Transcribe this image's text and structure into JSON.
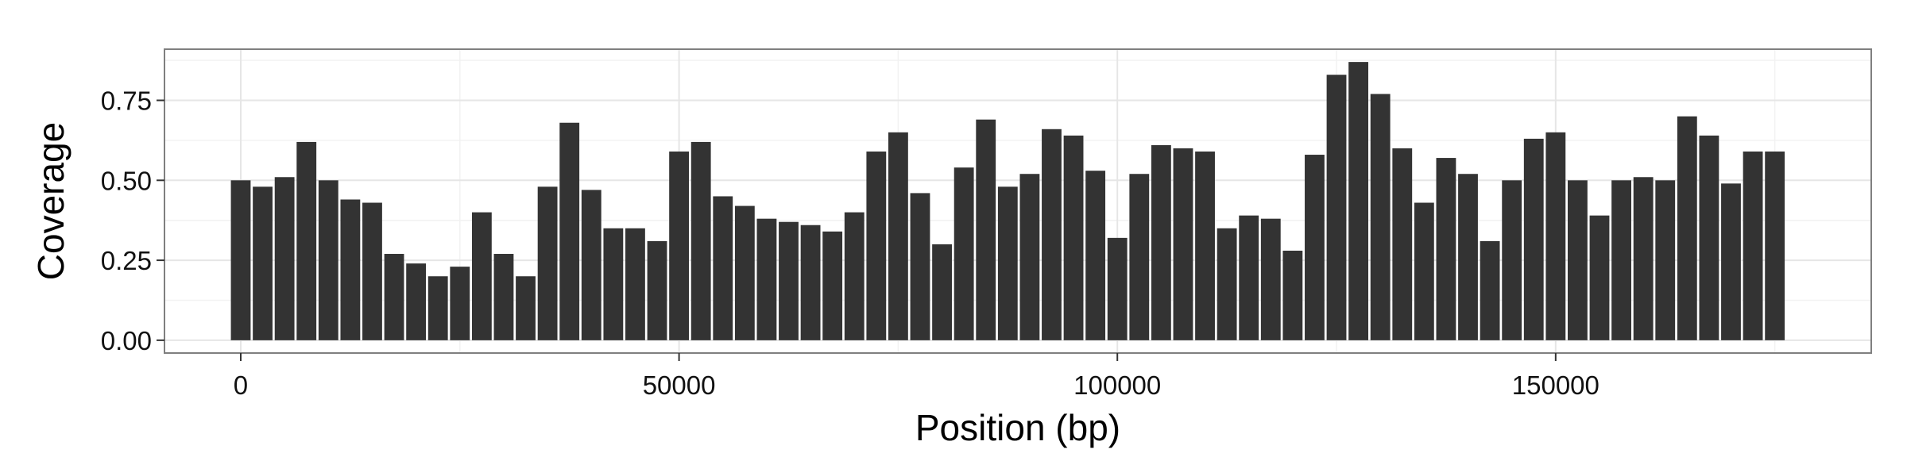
{
  "chart_data": {
    "type": "bar",
    "xlabel": "Position (bp)",
    "ylabel": "Coverage",
    "xlim": [
      -8700,
      186000
    ],
    "ylim": [
      -0.04,
      0.91
    ],
    "x_ticks": [
      0,
      50000,
      100000,
      150000
    ],
    "x_tick_labels": [
      "0",
      "50000",
      "100000",
      "150000"
    ],
    "y_ticks": [
      0,
      0.25,
      0.5,
      0.75
    ],
    "y_tick_labels": [
      "0.00",
      "0.25",
      "0.50",
      "0.75"
    ],
    "grid": true,
    "bar_width": 2500,
    "x": [
      0,
      2500,
      5000,
      7500,
      10000,
      12500,
      15000,
      17500,
      20000,
      22500,
      25000,
      27500,
      30000,
      32500,
      35000,
      37500,
      40000,
      42500,
      45000,
      47500,
      50000,
      52500,
      55000,
      57500,
      60000,
      62500,
      65000,
      67500,
      70000,
      72500,
      75000,
      77500,
      80000,
      82500,
      85000,
      87500,
      90000,
      92500,
      95000,
      97500,
      100000,
      102500,
      105000,
      107500,
      110000,
      112500,
      115000,
      117500,
      120000,
      122500,
      125000,
      127500,
      130000,
      132500,
      135000,
      137500,
      140000,
      142500,
      145000,
      147500,
      150000,
      152500,
      155000,
      157500,
      160000,
      162500,
      165000,
      167500,
      170000,
      172500,
      175000
    ],
    "values": [
      0.5,
      0.48,
      0.51,
      0.62,
      0.5,
      0.44,
      0.43,
      0.27,
      0.24,
      0.2,
      0.23,
      0.4,
      0.27,
      0.2,
      0.48,
      0.68,
      0.47,
      0.35,
      0.35,
      0.31,
      0.59,
      0.62,
      0.45,
      0.42,
      0.38,
      0.37,
      0.36,
      0.34,
      0.4,
      0.59,
      0.65,
      0.46,
      0.3,
      0.54,
      0.69,
      0.48,
      0.52,
      0.66,
      0.64,
      0.53,
      0.32,
      0.52,
      0.61,
      0.6,
      0.59,
      0.35,
      0.39,
      0.38,
      0.28,
      0.58,
      0.83,
      0.87,
      0.77,
      0.6,
      0.43,
      0.57,
      0.52,
      0.31,
      0.5,
      0.63,
      0.65,
      0.5,
      0.39,
      0.5,
      0.51,
      0.5,
      0.7,
      0.64,
      0.49,
      0.59,
      0.59
    ],
    "colors": {
      "bar": "#333333",
      "panel_border": "#7f7f7f",
      "grid_major": "#e6e6e6",
      "grid_minor": "#f2f2f2",
      "tick": "#333333"
    }
  }
}
